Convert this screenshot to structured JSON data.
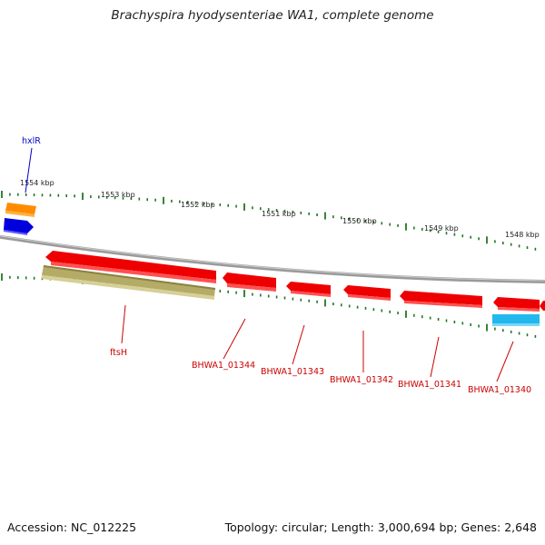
{
  "title": "Brachyspira hyodysenteriae WA1, complete genome",
  "footer": {
    "accession": "Accession: NC_012225",
    "summary": "Topology: circular; Length: 3,000,694 bp; Genes: 2,648"
  },
  "ruler": {
    "tick_labels": [
      "1554 kbp",
      "1553 kbp",
      "1552 kbp",
      "1551 kbp",
      "1550 kbp",
      "1549 kbp",
      "1548 kbp"
    ]
  },
  "colors": {
    "backbone": "#888888",
    "gene_red": "#ee0000",
    "gene_olive": "#b5ad6a",
    "gene_orange": "#ff8a00",
    "gene_blue": "#0000dd",
    "gene_cyan": "#22bbee",
    "ticks": "#227722",
    "label_red": "#cc0000",
    "label_blue": "#0000cc"
  },
  "genes": [
    {
      "name": "hxlR",
      "color": "blue"
    },
    {
      "name": "ftsH",
      "color": "red"
    },
    {
      "name": "BHWA1_01344",
      "color": "red"
    },
    {
      "name": "BHWA1_01343",
      "color": "red"
    },
    {
      "name": "BHWA1_01342",
      "color": "red"
    },
    {
      "name": "BHWA1_01341",
      "color": "red"
    },
    {
      "name": "BHWA1_01340",
      "color": "red"
    }
  ]
}
